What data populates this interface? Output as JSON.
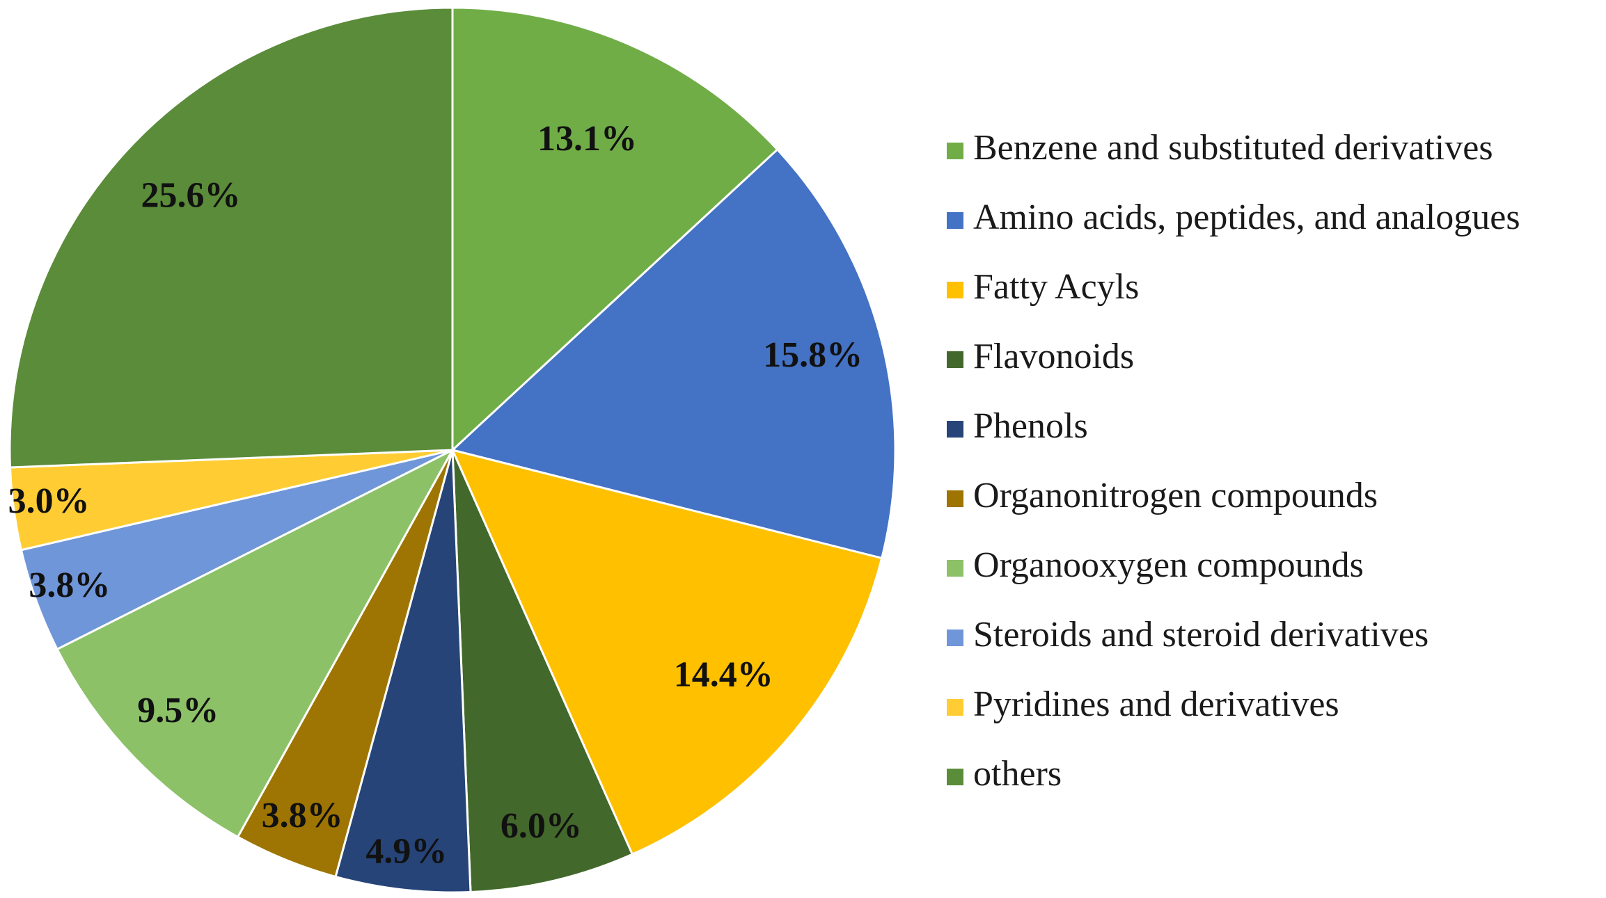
{
  "chart_data": {
    "type": "pie",
    "title": "",
    "legend_position": "right",
    "slices": [
      {
        "name": "Benzene and substituted derivatives",
        "value": 13.1,
        "label": "13.1%",
        "color": "#70AD47"
      },
      {
        "name": "Amino acids, peptides, and analogues",
        "value": 15.8,
        "label": "15.8%",
        "color": "#4472C4"
      },
      {
        "name": "Fatty Acyls",
        "value": 14.4,
        "label": "14.4%",
        "color": "#FFC000"
      },
      {
        "name": "Flavonoids",
        "value": 6.0,
        "label": "6.0%",
        "color": "#43682B"
      },
      {
        "name": "Phenols",
        "value": 4.9,
        "label": "4.9%",
        "color": "#264478"
      },
      {
        "name": "Organonitrogen compounds",
        "value": 3.8,
        "label": "3.8%",
        "color": "#9E7502"
      },
      {
        "name": "Organooxygen compounds",
        "value": 9.5,
        "label": "9.5%",
        "color": "#8CC168"
      },
      {
        "name": "Steroids and steroid derivatives",
        "value": 3.8,
        "label": "3.8%",
        "color": "#6F96D8"
      },
      {
        "name": "Pyridines and derivatives",
        "value": 3.0,
        "label": "3.0%",
        "color": "#FFCD33"
      },
      {
        "name": "others",
        "value": 25.6,
        "label": "25.6%",
        "color": "#5B8C3A"
      }
    ]
  }
}
